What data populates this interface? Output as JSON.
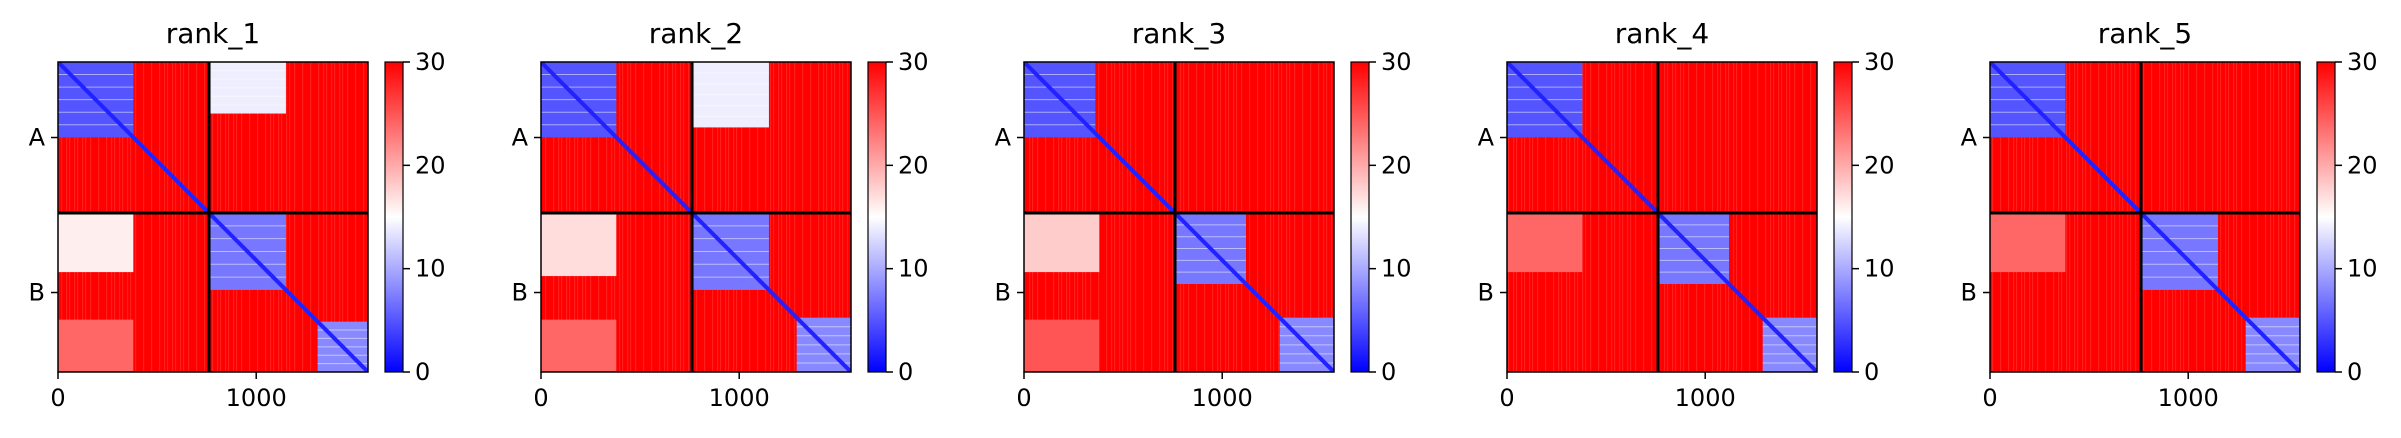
{
  "chart_data": [
    {
      "type": "heatmap",
      "title": "rank_1",
      "xlabel": "",
      "ylabel": "",
      "x_ticks": [
        0,
        1000
      ],
      "y_tick_labels": [
        "A",
        "B"
      ],
      "xlim": [
        0,
        1564
      ],
      "ylim": [
        0,
        1564
      ],
      "chain_boundary": 762,
      "colorbar": {
        "min": 0,
        "max": 30,
        "ticks": [
          0,
          10,
          20,
          30
        ],
        "colors": [
          "#0000ff",
          "#ffffff",
          "#ff0000"
        ]
      },
      "blocks": [
        {
          "x": [
            0,
            380
          ],
          "y": [
            0,
            380
          ],
          "value": 5
        },
        {
          "x": [
            762,
            1150
          ],
          "y": [
            762,
            1150
          ],
          "value": 7
        },
        {
          "x": [
            1310,
            1564
          ],
          "y": [
            1310,
            1564
          ],
          "value": 8
        },
        {
          "x": [
            762,
            1150
          ],
          "y": [
            0,
            260
          ],
          "value": 14
        },
        {
          "x": [
            0,
            380
          ],
          "y": [
            762,
            1060
          ],
          "value": 16
        },
        {
          "x": [
            0,
            380
          ],
          "y": [
            1300,
            1564
          ],
          "value": 24
        }
      ]
    },
    {
      "type": "heatmap",
      "title": "rank_2",
      "xlabel": "",
      "ylabel": "",
      "x_ticks": [
        0,
        1000
      ],
      "y_tick_labels": [
        "A",
        "B"
      ],
      "xlim": [
        0,
        1564
      ],
      "ylim": [
        0,
        1564
      ],
      "chain_boundary": 762,
      "colorbar": {
        "min": 0,
        "max": 30,
        "ticks": [
          0,
          10,
          20,
          30
        ],
        "colors": [
          "#0000ff",
          "#ffffff",
          "#ff0000"
        ]
      },
      "blocks": [
        {
          "x": [
            0,
            380
          ],
          "y": [
            0,
            380
          ],
          "value": 5
        },
        {
          "x": [
            762,
            1150
          ],
          "y": [
            762,
            1150
          ],
          "value": 7
        },
        {
          "x": [
            1290,
            1564
          ],
          "y": [
            1290,
            1564
          ],
          "value": 8
        },
        {
          "x": [
            762,
            1150
          ],
          "y": [
            0,
            330
          ],
          "value": 14
        },
        {
          "x": [
            0,
            380
          ],
          "y": [
            762,
            1080
          ],
          "value": 17
        },
        {
          "x": [
            0,
            380
          ],
          "y": [
            1300,
            1564
          ],
          "value": 24
        }
      ]
    },
    {
      "type": "heatmap",
      "title": "rank_3",
      "xlabel": "",
      "ylabel": "",
      "x_ticks": [
        0,
        1000
      ],
      "y_tick_labels": [
        "A",
        "B"
      ],
      "xlim": [
        0,
        1564
      ],
      "ylim": [
        0,
        1564
      ],
      "chain_boundary": 762,
      "colorbar": {
        "min": 0,
        "max": 30,
        "ticks": [
          0,
          10,
          20,
          30
        ],
        "colors": [
          "#0000ff",
          "#ffffff",
          "#ff0000"
        ]
      },
      "blocks": [
        {
          "x": [
            0,
            360
          ],
          "y": [
            0,
            380
          ],
          "value": 5
        },
        {
          "x": [
            762,
            1120
          ],
          "y": [
            762,
            1120
          ],
          "value": 7
        },
        {
          "x": [
            1290,
            1564
          ],
          "y": [
            1290,
            1564
          ],
          "value": 8
        },
        {
          "x": [
            0,
            380
          ],
          "y": [
            762,
            1060
          ],
          "value": 18
        },
        {
          "x": [
            0,
            380
          ],
          "y": [
            1300,
            1564
          ],
          "value": 25
        }
      ]
    },
    {
      "type": "heatmap",
      "title": "rank_4",
      "xlabel": "",
      "ylabel": "",
      "x_ticks": [
        0,
        1000
      ],
      "y_tick_labels": [
        "A",
        "B"
      ],
      "xlim": [
        0,
        1564
      ],
      "ylim": [
        0,
        1564
      ],
      "chain_boundary": 762,
      "colorbar": {
        "min": 0,
        "max": 30,
        "ticks": [
          0,
          10,
          20,
          30
        ],
        "colors": [
          "#0000ff",
          "#ffffff",
          "#ff0000"
        ]
      },
      "blocks": [
        {
          "x": [
            0,
            380
          ],
          "y": [
            0,
            380
          ],
          "value": 5
        },
        {
          "x": [
            762,
            1120
          ],
          "y": [
            762,
            1120
          ],
          "value": 7
        },
        {
          "x": [
            1290,
            1564
          ],
          "y": [
            1290,
            1564
          ],
          "value": 8
        },
        {
          "x": [
            0,
            380
          ],
          "y": [
            762,
            1060
          ],
          "value": 24
        }
      ]
    },
    {
      "type": "heatmap",
      "title": "rank_5",
      "xlabel": "",
      "ylabel": "",
      "x_ticks": [
        0,
        1000
      ],
      "y_tick_labels": [
        "A",
        "B"
      ],
      "xlim": [
        0,
        1564
      ],
      "ylim": [
        0,
        1564
      ],
      "chain_boundary": 762,
      "colorbar": {
        "min": 0,
        "max": 30,
        "ticks": [
          0,
          10,
          20,
          30
        ],
        "colors": [
          "#0000ff",
          "#ffffff",
          "#ff0000"
        ]
      },
      "blocks": [
        {
          "x": [
            0,
            380
          ],
          "y": [
            0,
            380
          ],
          "value": 5
        },
        {
          "x": [
            762,
            1150
          ],
          "y": [
            762,
            1150
          ],
          "value": 7
        },
        {
          "x": [
            1290,
            1564
          ],
          "y": [
            1290,
            1564
          ],
          "value": 8
        },
        {
          "x": [
            0,
            380
          ],
          "y": [
            762,
            1060
          ],
          "value": 24
        }
      ]
    }
  ]
}
